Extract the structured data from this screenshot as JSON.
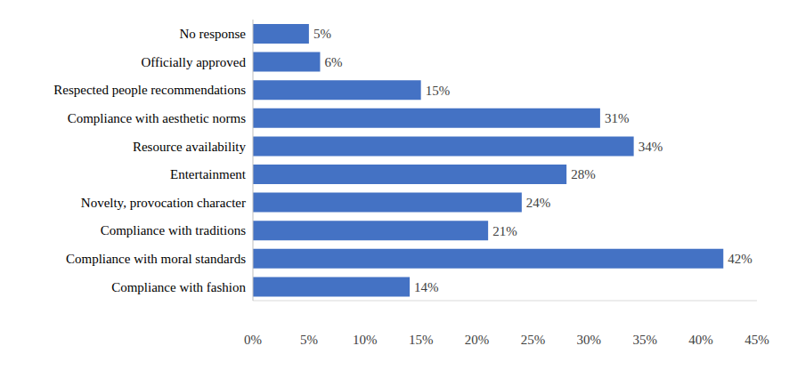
{
  "chart_data": {
    "type": "bar",
    "orientation": "horizontal",
    "categories": [
      "No response",
      "Officially approved",
      "Respected people recommendations",
      "Compliance with aesthetic norms",
      "Resource availability",
      "Entertainment",
      "Novelty, provocation character",
      "Compliance with traditions",
      "Compliance with moral standards",
      "Compliance with fashion"
    ],
    "values": [
      5,
      6,
      15,
      31,
      34,
      28,
      24,
      21,
      42,
      14
    ],
    "value_labels": [
      "5%",
      "6%",
      "15%",
      "31%",
      "34%",
      "28%",
      "24%",
      "21%",
      "42%",
      "14%"
    ],
    "data_labels": true,
    "color": "#4472c4",
    "xlim": [
      0,
      45
    ],
    "xticks": [
      {
        "value": 0,
        "label": "0%"
      },
      {
        "value": 5,
        "label": "5%"
      },
      {
        "value": 10,
        "label": "10%"
      },
      {
        "value": 15,
        "label": "15%"
      },
      {
        "value": 20,
        "label": "20%"
      },
      {
        "value": 25,
        "label": "25%"
      },
      {
        "value": 30,
        "label": "30%"
      },
      {
        "value": 35,
        "label": "35%"
      },
      {
        "value": 40,
        "label": "40%"
      },
      {
        "value": 45,
        "label": "45%"
      }
    ],
    "grid": false
  }
}
